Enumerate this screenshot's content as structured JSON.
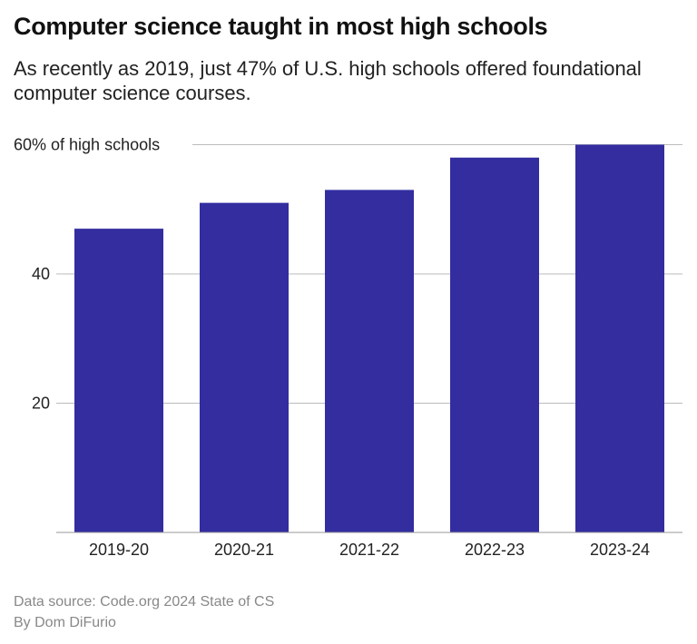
{
  "chart_data": {
    "type": "bar",
    "title": "Computer science taught in most high schools",
    "subtitle": "As recently as 2019, just 47% of U.S. high schools offered foundational computer science courses.",
    "categories": [
      "2019-20",
      "2020-21",
      "2021-22",
      "2022-23",
      "2023-24"
    ],
    "values": [
      47,
      51,
      53,
      58,
      60
    ],
    "ylim": [
      0,
      60
    ],
    "yticks": [
      20,
      40,
      60
    ],
    "ytick_labels": [
      "20",
      "40",
      "60% of high schools"
    ],
    "grid": true,
    "bar_color": "#332DA0"
  },
  "footer": {
    "source": "Data source: Code.org 2024 State of CS",
    "byline": "By Dom DiFurio"
  }
}
